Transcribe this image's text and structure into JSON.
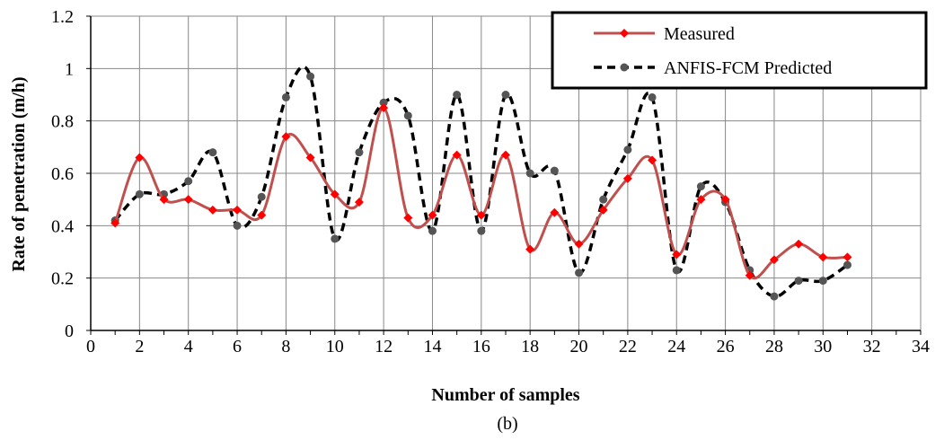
{
  "caption": "(b)",
  "chart_data": {
    "type": "line",
    "xlabel": "Number of samples",
    "ylabel": "Rate of penetration (m/h)",
    "xlim": [
      0,
      34
    ],
    "ylim": [
      0,
      1.2
    ],
    "x_ticks": [
      0,
      2,
      4,
      6,
      8,
      10,
      12,
      14,
      16,
      18,
      20,
      22,
      24,
      26,
      28,
      30,
      32,
      34
    ],
    "y_ticks": [
      0,
      0.2,
      0.4,
      0.6,
      0.8,
      1,
      1.2
    ],
    "grid": true,
    "smooth": true,
    "legend_position": "top-right",
    "x": [
      1,
      2,
      3,
      4,
      5,
      6,
      7,
      8,
      9,
      10,
      11,
      12,
      13,
      14,
      15,
      16,
      17,
      18,
      19,
      20,
      21,
      22,
      23,
      24,
      25,
      26,
      27,
      28,
      29,
      30,
      31
    ],
    "series": [
      {
        "name": "Measured",
        "color": "#c0504d",
        "marker": "diamond",
        "marker_color": "#ff0000",
        "line_style": "solid",
        "values": [
          0.41,
          0.66,
          0.5,
          0.5,
          0.46,
          0.46,
          0.44,
          0.74,
          0.66,
          0.52,
          0.49,
          0.85,
          0.43,
          0.44,
          0.67,
          0.44,
          0.67,
          0.31,
          0.45,
          0.33,
          0.46,
          0.58,
          0.65,
          0.29,
          0.5,
          0.5,
          0.21,
          0.27,
          0.33,
          0.28,
          0.28
        ]
      },
      {
        "name": "ANFIS-FCM Predicted",
        "color": "#000000",
        "marker": "circle",
        "marker_color": "#555555",
        "line_style": "dashed",
        "values": [
          0.42,
          0.52,
          0.52,
          0.57,
          0.68,
          0.4,
          0.51,
          0.89,
          0.97,
          0.35,
          0.68,
          0.87,
          0.82,
          0.38,
          0.9,
          0.38,
          0.9,
          0.6,
          0.61,
          0.22,
          0.5,
          0.69,
          0.89,
          0.23,
          0.55,
          0.49,
          0.23,
          0.13,
          0.19,
          0.19,
          0.25
        ]
      }
    ]
  }
}
